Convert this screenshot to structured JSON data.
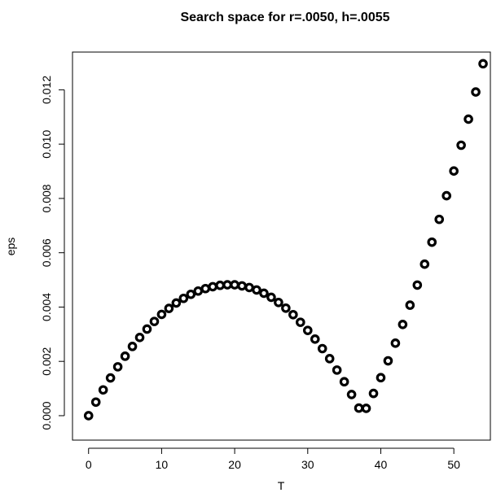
{
  "chart_data": {
    "type": "scatter",
    "title": "Search space for r=.0050, h=.0055",
    "xlabel": "T",
    "ylabel": "eps",
    "xlim": [
      -2.2,
      55
    ],
    "ylim": [
      -0.0009,
      0.01339
    ],
    "xticks": [
      0,
      10,
      20,
      30,
      40,
      50
    ],
    "xtick_labels": [
      "0",
      "10",
      "20",
      "30",
      "40",
      "50"
    ],
    "yticks": [
      0,
      0.002,
      0.004,
      0.006,
      0.008,
      0.01,
      0.012
    ],
    "ytick_labels": [
      "0.000",
      "0.002",
      "0.004",
      "0.006",
      "0.008",
      "0.010",
      "0.012"
    ],
    "grid": false,
    "legend": false,
    "marker": "circle-open",
    "color": "#000000",
    "x": [
      0,
      1,
      2,
      3,
      4,
      5,
      6,
      7,
      8,
      9,
      10,
      11,
      12,
      13,
      14,
      15,
      16,
      17,
      18,
      19,
      20,
      21,
      22,
      23,
      24,
      25,
      26,
      27,
      28,
      29,
      30,
      31,
      32,
      33,
      34,
      35,
      36,
      37,
      38,
      39,
      40,
      41,
      42,
      43,
      44,
      45,
      46,
      47,
      48,
      49,
      50,
      51,
      52,
      53,
      54
    ],
    "y": [
      0.0,
      0.0005,
      0.00095,
      0.00139,
      0.0018,
      0.00219,
      0.00255,
      0.00288,
      0.00319,
      0.00347,
      0.00373,
      0.00395,
      0.00415,
      0.00432,
      0.00447,
      0.00459,
      0.00468,
      0.00475,
      0.0048,
      0.00482,
      0.00482,
      0.00478,
      0.00472,
      0.00463,
      0.00451,
      0.00436,
      0.00417,
      0.00396,
      0.00372,
      0.00344,
      0.00314,
      0.00282,
      0.00247,
      0.0021,
      0.00168,
      0.00125,
      0.00078,
      0.00028,
      0.00027,
      0.00082,
      0.0014,
      0.00202,
      0.00267,
      0.00336,
      0.00407,
      0.00481,
      0.00558,
      0.00639,
      0.00723,
      0.0081,
      0.00901,
      0.00996,
      0.01092,
      0.01192,
      0.01296
    ]
  }
}
